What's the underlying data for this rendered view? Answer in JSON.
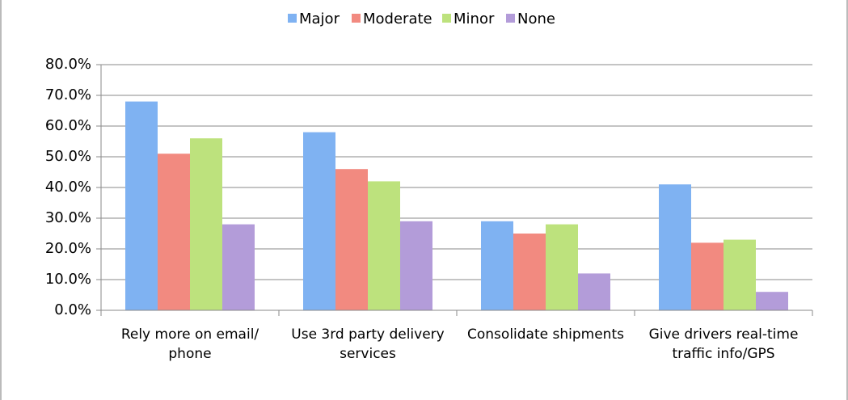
{
  "chart_data": {
    "type": "bar",
    "categories": [
      "Rely more on email/ phone",
      "Use 3rd party delivery services",
      "Consolidate shipments",
      "Give drivers real-time traffic info/GPS"
    ],
    "series": [
      {
        "name": "Major",
        "color": "#7fb2f2",
        "values": [
          68,
          58,
          29,
          41
        ]
      },
      {
        "name": "Moderate",
        "color": "#f28a80",
        "values": [
          51,
          46,
          25,
          22
        ]
      },
      {
        "name": "Minor",
        "color": "#bde27d",
        "values": [
          56,
          42,
          28,
          23
        ]
      },
      {
        "name": "None",
        "color": "#b39cd9",
        "values": [
          28,
          29,
          12,
          6
        ]
      }
    ],
    "ylim": [
      0,
      80
    ],
    "yticks": [
      {
        "value": 0,
        "label": "0.0%"
      },
      {
        "value": 10,
        "label": "10.0%"
      },
      {
        "value": 20,
        "label": "20.0%"
      },
      {
        "value": 30,
        "label": "30.0%"
      },
      {
        "value": 40,
        "label": "40.0%"
      },
      {
        "value": 50,
        "label": "50.0%"
      },
      {
        "value": 60,
        "label": "60.0%"
      },
      {
        "value": 70,
        "label": "70.0%"
      },
      {
        "value": 80,
        "label": "80.0%"
      }
    ],
    "grid": true,
    "legend": "top"
  }
}
